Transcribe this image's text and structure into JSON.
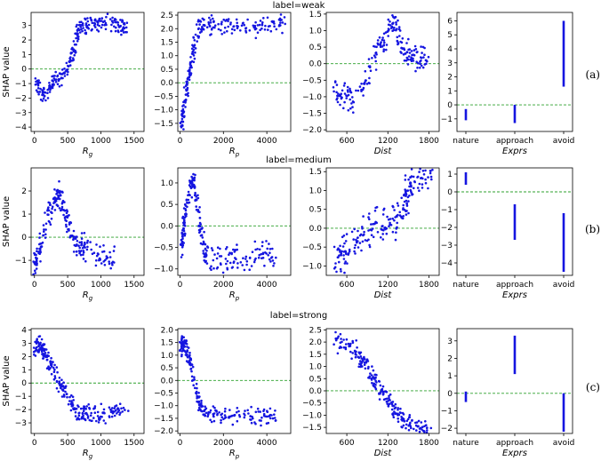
{
  "colors": {
    "points": "#1515e0",
    "reference_line": "#2ca02c"
  },
  "rows": [
    {
      "title": "label=weak",
      "tag": "(a)"
    },
    {
      "title": "label=medium",
      "tag": "(b)"
    },
    {
      "title": "label=strong",
      "tag": "(c)"
    }
  ],
  "ylabel": "SHAP value",
  "chart_data": [
    {
      "id": "weak-rg",
      "type": "scatter",
      "xlabel": "R",
      "xlabel_sub": "g",
      "ylabel": "SHAP value",
      "xlim": [
        -50,
        1650
      ],
      "ylim": [
        -4.3,
        3.9
      ],
      "xticks": [
        0,
        500,
        1000,
        1500
      ],
      "yticks": [
        -4,
        -3,
        -2,
        -1,
        0,
        1,
        2,
        3
      ],
      "reference_y": 0,
      "anchors": [
        [
          0,
          -0.8
        ],
        [
          60,
          -1.2
        ],
        [
          120,
          -1.8
        ],
        [
          180,
          -1.6
        ],
        [
          260,
          -1.0
        ],
        [
          350,
          -0.8
        ],
        [
          420,
          -0.6
        ],
        [
          480,
          0.0
        ],
        [
          540,
          0.6
        ],
        [
          600,
          1.5
        ],
        [
          650,
          2.5
        ],
        [
          700,
          2.9
        ],
        [
          800,
          3.0
        ],
        [
          900,
          3.1
        ],
        [
          1000,
          3.1
        ],
        [
          1100,
          3.2
        ],
        [
          1200,
          3.1
        ],
        [
          1300,
          3.0
        ],
        [
          1400,
          2.7
        ]
      ],
      "spread": 0.35,
      "count": 260
    },
    {
      "id": "weak-rp",
      "type": "scatter",
      "xlabel": "R",
      "xlabel_sub": "p",
      "ylabel": "",
      "xlim": [
        -100,
        5100
      ],
      "ylim": [
        -1.8,
        2.6
      ],
      "xticks": [
        0,
        2000,
        4000
      ],
      "yticks": [
        -1.5,
        -1.0,
        -0.5,
        0.0,
        0.5,
        1.0,
        1.5,
        2.0,
        2.5
      ],
      "reference_y": 0,
      "anchors": [
        [
          50,
          -1.5
        ],
        [
          150,
          -1.2
        ],
        [
          250,
          -0.6
        ],
        [
          400,
          0.2
        ],
        [
          550,
          0.9
        ],
        [
          700,
          1.5
        ],
        [
          900,
          2.0
        ],
        [
          1100,
          2.2
        ],
        [
          1500,
          2.2
        ],
        [
          2000,
          2.2
        ],
        [
          2500,
          2.1
        ],
        [
          3000,
          2.1
        ],
        [
          3500,
          2.1
        ],
        [
          4000,
          2.2
        ],
        [
          4500,
          2.2
        ],
        [
          4800,
          2.3
        ]
      ],
      "spread": 0.25,
      "count": 230
    },
    {
      "id": "weak-dist",
      "type": "scatter",
      "xlabel": "Dist",
      "xlabel_sub": "",
      "ylabel": "",
      "xlim": [
        300,
        1950
      ],
      "ylim": [
        -2.05,
        1.55
      ],
      "xticks": [
        600,
        1200,
        1800
      ],
      "yticks": [
        -2.0,
        -1.5,
        -1.0,
        -0.5,
        0.0,
        0.5,
        1.0,
        1.5
      ],
      "reference_y": 0,
      "anchors": [
        [
          420,
          -0.7
        ],
        [
          500,
          -1.0
        ],
        [
          600,
          -0.9
        ],
        [
          700,
          -1.1
        ],
        [
          800,
          -0.8
        ],
        [
          900,
          -0.4
        ],
        [
          1000,
          0.2
        ],
        [
          1100,
          0.5
        ],
        [
          1200,
          1.0
        ],
        [
          1280,
          1.3
        ],
        [
          1350,
          0.9
        ],
        [
          1420,
          0.5
        ],
        [
          1500,
          0.3
        ],
        [
          1600,
          0.1
        ],
        [
          1700,
          0.2
        ],
        [
          1800,
          0.1
        ]
      ],
      "spread": 0.25,
      "count": 210
    },
    {
      "id": "weak-exprs",
      "type": "strip",
      "xlabel": "Exprs",
      "xlabel_sub": "",
      "ylabel": "",
      "ylim": [
        -1.9,
        6.6
      ],
      "yticks": [
        -1,
        0,
        1,
        2,
        3,
        4,
        5,
        6
      ],
      "reference_y": 0,
      "categories": [
        "nature",
        "approach",
        "avoid"
      ],
      "ranges": [
        [
          -1.1,
          -0.3
        ],
        [
          -1.3,
          0.0
        ],
        [
          1.3,
          6.0
        ]
      ]
    },
    {
      "id": "medium-rg",
      "type": "scatter",
      "xlabel": "R",
      "xlabel_sub": "g",
      "ylabel": "SHAP value",
      "xlim": [
        -50,
        1650
      ],
      "ylim": [
        -1.65,
        3.0
      ],
      "xticks": [
        0,
        500,
        1000,
        1500
      ],
      "yticks": [
        -1,
        0,
        1,
        2
      ],
      "reference_y": 0,
      "anchors": [
        [
          0,
          -1.2
        ],
        [
          50,
          -0.8
        ],
        [
          100,
          -0.3
        ],
        [
          200,
          0.9
        ],
        [
          300,
          1.6
        ],
        [
          380,
          1.9
        ],
        [
          450,
          1.2
        ],
        [
          550,
          0.3
        ],
        [
          650,
          -0.3
        ],
        [
          800,
          -0.6
        ],
        [
          1000,
          -0.8
        ],
        [
          1200,
          -0.9
        ]
      ],
      "spread": 0.35,
      "count": 230
    },
    {
      "id": "medium-rp",
      "type": "scatter",
      "xlabel": "R",
      "xlabel_sub": "p",
      "ylabel": "",
      "xlim": [
        -100,
        5100
      ],
      "ylim": [
        -1.15,
        1.35
      ],
      "xticks": [
        0,
        2000,
        4000
      ],
      "yticks": [
        -1.0,
        -0.5,
        0.0,
        0.5,
        1.0
      ],
      "reference_y": 0,
      "anchors": [
        [
          50,
          -0.5
        ],
        [
          150,
          -0.1
        ],
        [
          300,
          0.4
        ],
        [
          500,
          0.9
        ],
        [
          650,
          1.1
        ],
        [
          800,
          0.5
        ],
        [
          1000,
          -0.3
        ],
        [
          1200,
          -0.7
        ],
        [
          1600,
          -0.8
        ],
        [
          2200,
          -0.8
        ],
        [
          3000,
          -0.7
        ],
        [
          3800,
          -0.7
        ],
        [
          4400,
          -0.6
        ]
      ],
      "spread": 0.2,
      "count": 240
    },
    {
      "id": "medium-dist",
      "type": "scatter",
      "xlabel": "Dist",
      "xlabel_sub": "",
      "ylabel": "",
      "xlim": [
        300,
        1950
      ],
      "ylim": [
        -1.25,
        1.6
      ],
      "xticks": [
        600,
        1200,
        1800
      ],
      "yticks": [
        -1.0,
        -0.5,
        0.0,
        0.5,
        1.0,
        1.5
      ],
      "reference_y": 0,
      "anchors": [
        [
          420,
          -0.8
        ],
        [
          550,
          -0.7
        ],
        [
          700,
          -0.5
        ],
        [
          850,
          -0.2
        ],
        [
          1000,
          0.1
        ],
        [
          1150,
          0.0
        ],
        [
          1300,
          0.2
        ],
        [
          1450,
          0.8
        ],
        [
          1550,
          1.1
        ],
        [
          1650,
          1.4
        ],
        [
          1750,
          1.5
        ],
        [
          1850,
          1.5
        ]
      ],
      "spread": 0.3,
      "count": 230
    },
    {
      "id": "medium-exprs",
      "type": "strip",
      "xlabel": "Exprs",
      "xlabel_sub": "",
      "ylabel": "",
      "ylim": [
        -4.7,
        1.35
      ],
      "yticks": [
        -4,
        -3,
        -2,
        -1,
        0,
        1
      ],
      "reference_y": 0,
      "categories": [
        "nature",
        "approach",
        "avoid"
      ],
      "ranges": [
        [
          0.4,
          1.1
        ],
        [
          -2.7,
          -0.7
        ],
        [
          -4.5,
          -1.2
        ]
      ]
    },
    {
      "id": "strong-rg",
      "type": "scatter",
      "xlabel": "R",
      "xlabel_sub": "g",
      "ylabel": "SHAP value",
      "xlim": [
        -50,
        1650
      ],
      "ylim": [
        -3.8,
        4.1
      ],
      "xticks": [
        0,
        500,
        1000,
        1500
      ],
      "yticks": [
        -3,
        -2,
        -1,
        0,
        1,
        2,
        3,
        4
      ],
      "reference_y": 0,
      "anchors": [
        [
          0,
          2.6
        ],
        [
          80,
          2.9
        ],
        [
          150,
          2.3
        ],
        [
          250,
          1.3
        ],
        [
          350,
          0.3
        ],
        [
          450,
          -0.6
        ],
        [
          550,
          -1.4
        ],
        [
          650,
          -2.0
        ],
        [
          750,
          -2.3
        ],
        [
          900,
          -2.4
        ],
        [
          1050,
          -2.3
        ],
        [
          1200,
          -2.2
        ],
        [
          1400,
          -2.1
        ]
      ],
      "spread": 0.4,
      "count": 250
    },
    {
      "id": "strong-rp",
      "type": "scatter",
      "xlabel": "R",
      "xlabel_sub": "p",
      "ylabel": "",
      "xlim": [
        -100,
        5100
      ],
      "ylim": [
        -2.1,
        2.05
      ],
      "xticks": [
        0,
        2000,
        4000
      ],
      "yticks": [
        -2.0,
        -1.5,
        -1.0,
        -0.5,
        0.0,
        0.5,
        1.0,
        1.5,
        2.0
      ],
      "reference_y": 0,
      "anchors": [
        [
          50,
          1.3
        ],
        [
          150,
          1.6
        ],
        [
          300,
          1.2
        ],
        [
          500,
          0.6
        ],
        [
          700,
          -0.3
        ],
        [
          900,
          -0.9
        ],
        [
          1200,
          -1.3
        ],
        [
          1600,
          -1.4
        ],
        [
          2200,
          -1.4
        ],
        [
          3000,
          -1.4
        ],
        [
          3800,
          -1.4
        ],
        [
          4400,
          -1.5
        ]
      ],
      "spread": 0.2,
      "count": 230
    },
    {
      "id": "strong-dist",
      "type": "scatter",
      "xlabel": "Dist",
      "xlabel_sub": "",
      "ylabel": "",
      "xlim": [
        300,
        1950
      ],
      "ylim": [
        -1.75,
        2.55
      ],
      "xticks": [
        600,
        1200,
        1800
      ],
      "yticks": [
        -1.5,
        -1.0,
        -0.5,
        0.0,
        0.5,
        1.0,
        1.5,
        2.0,
        2.5
      ],
      "reference_y": 0,
      "anchors": [
        [
          420,
          2.0
        ],
        [
          550,
          1.9
        ],
        [
          700,
          1.7
        ],
        [
          800,
          1.3
        ],
        [
          900,
          0.9
        ],
        [
          1000,
          0.4
        ],
        [
          1100,
          0.0
        ],
        [
          1200,
          -0.4
        ],
        [
          1300,
          -0.8
        ],
        [
          1400,
          -1.1
        ],
        [
          1500,
          -1.3
        ],
        [
          1600,
          -1.5
        ],
        [
          1700,
          -1.6
        ],
        [
          1850,
          -1.65
        ]
      ],
      "spread": 0.25,
      "count": 230
    },
    {
      "id": "strong-exprs",
      "type": "strip",
      "xlabel": "Exprs",
      "xlabel_sub": "",
      "ylabel": "",
      "ylim": [
        -2.3,
        3.7
      ],
      "yticks": [
        -2,
        -1,
        0,
        1,
        2,
        3
      ],
      "reference_y": 0,
      "categories": [
        "nature",
        "approach",
        "avoid"
      ],
      "ranges": [
        [
          -0.5,
          0.1
        ],
        [
          1.1,
          3.3
        ],
        [
          -2.2,
          0.0
        ]
      ]
    }
  ]
}
